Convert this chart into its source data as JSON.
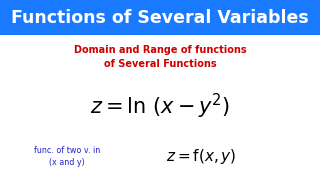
{
  "title": "Functions of Several Variables",
  "title_bg": "#1a7aff",
  "title_color": "#ffffff",
  "subtitle_line1": "Domain and Range of functions",
  "subtitle_line2": "of Several Functions",
  "subtitle_color": "#cc0000",
  "main_formula": "$z = \\ln\\,(x - y^{2})$",
  "side_label_line1": "func. of two v. in",
  "side_label_line2": "(x and y)",
  "side_formula": "$z = \\mathrm{f}(x, y)$",
  "label_color": "#2222cc",
  "formula_color": "#000000",
  "bg_color": "#ffffff",
  "banner_color": "#1a7aff"
}
